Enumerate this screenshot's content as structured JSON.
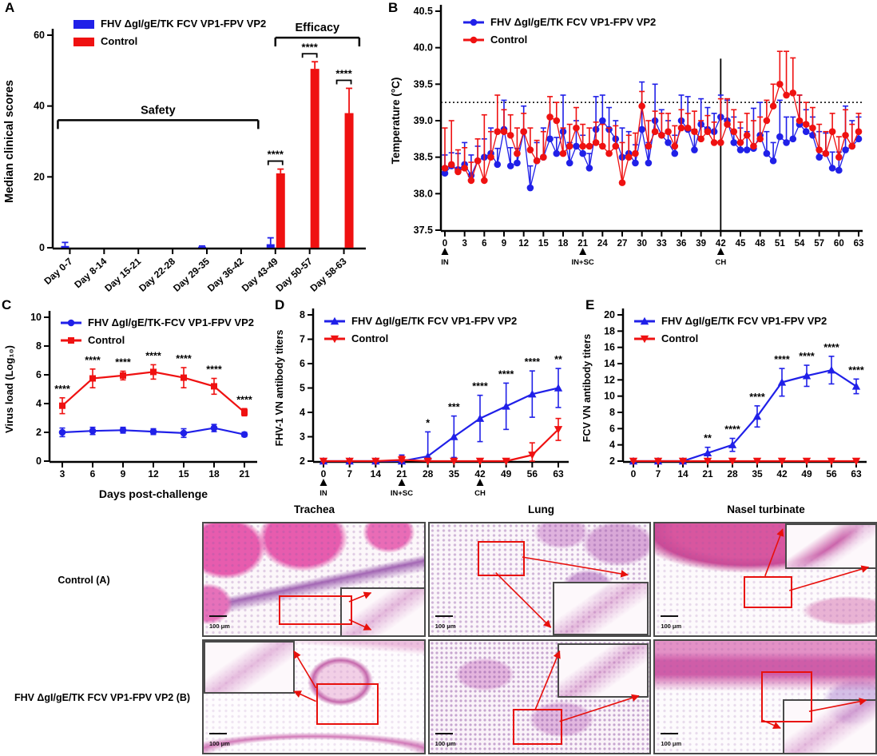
{
  "colors": {
    "vaccine": "#2020e8",
    "control": "#ef1111",
    "axis": "#000000",
    "roi": "#e8100c"
  },
  "histology": {
    "columns": [
      "Trachea",
      "Lung",
      "Nasel turbinate"
    ],
    "rows": [
      "Control (A)",
      "FHV ΔgI/gE/TK FCV VP1-FPV VP2 (B)"
    ],
    "scale_label": "100 μm"
  },
  "chart_data": [
    {
      "id": "A",
      "type": "bar",
      "ylabel": "Median clinical scores",
      "ylim": [
        0,
        60
      ],
      "yticks": [
        0,
        20,
        40,
        60
      ],
      "categories": [
        "Day 0-7",
        "Day 8-14",
        "Day 15-21",
        "Day 22-28",
        "Day 29-35",
        "Day 36-42",
        "Day 43-49",
        "Day 50-57",
        "Day 58-63"
      ],
      "series": [
        {
          "name": "FHV ΔgI/gE/TK FCV VP1-FPV VP2",
          "color": "#2020e8",
          "values": [
            0.5,
            0,
            0,
            0,
            0.3,
            0,
            1,
            0,
            0
          ],
          "errors": [
            1.0,
            0,
            0,
            0,
            0.2,
            0,
            1.8,
            0,
            0
          ]
        },
        {
          "name": "Control",
          "color": "#ef1111",
          "values": [
            0,
            0,
            0,
            0,
            0,
            0,
            21,
            50.5,
            38
          ],
          "errors": [
            0,
            0,
            0,
            0,
            0,
            0,
            1.2,
            2,
            7
          ]
        }
      ],
      "sig": [
        "",
        "",
        "",
        "",
        "",
        "",
        "****",
        "****",
        "****"
      ],
      "brackets": [
        {
          "label": "Safety",
          "from": -0.35,
          "to": 5.5,
          "y": 36
        },
        {
          "label": "Efficacy",
          "from": 6.0,
          "to": 8.45,
          "y": 59.3
        }
      ]
    },
    {
      "id": "B",
      "type": "scatter-line",
      "ylabel": "Temperature (°C)",
      "ylim": [
        37.5,
        40.5
      ],
      "yticks": [
        37.5,
        38.0,
        38.5,
        39.0,
        39.5,
        40.0,
        40.5
      ],
      "xticks": [
        0,
        3,
        6,
        9,
        12,
        15,
        18,
        21,
        24,
        27,
        30,
        33,
        36,
        39,
        42,
        45,
        48,
        51,
        54,
        57,
        60,
        63
      ],
      "threshold": 39.25,
      "challenge_line_x": 42,
      "arrows": [
        {
          "x": 0,
          "label": "IN"
        },
        {
          "x": 21,
          "label": "IN+SC"
        },
        {
          "x": 42,
          "label": "CH"
        }
      ],
      "x": [
        0,
        1,
        2,
        3,
        4,
        5,
        6,
        7,
        8,
        9,
        10,
        11,
        12,
        13,
        14,
        15,
        16,
        17,
        18,
        19,
        20,
        21,
        22,
        23,
        24,
        25,
        26,
        27,
        28,
        29,
        30,
        31,
        32,
        33,
        34,
        35,
        36,
        37,
        38,
        39,
        40,
        41,
        42,
        43,
        44,
        45,
        46,
        47,
        48,
        49,
        50,
        51,
        52,
        53,
        54,
        55,
        56,
        57,
        58,
        59,
        60,
        61,
        62,
        63
      ],
      "series": [
        {
          "name": "FHV ΔgI/gE/TK FCV VP1-FPV VP2",
          "color": "#2020e8",
          "marker": "circle",
          "values": [
            38.28,
            38.38,
            38.33,
            38.4,
            38.25,
            38.45,
            38.5,
            38.55,
            38.4,
            38.88,
            38.38,
            38.42,
            38.85,
            38.08,
            38.45,
            38.5,
            38.75,
            38.55,
            38.85,
            38.42,
            38.65,
            38.55,
            38.35,
            38.88,
            39.0,
            38.88,
            38.75,
            38.5,
            38.55,
            38.42,
            38.88,
            38.42,
            39.0,
            38.8,
            38.7,
            38.55,
            39.0,
            38.88,
            38.6,
            38.95,
            38.88,
            38.85,
            39.05,
            39.0,
            38.7,
            38.6,
            38.6,
            38.62,
            38.8,
            38.55,
            38.45,
            38.78,
            38.7,
            38.75,
            38.95,
            38.85,
            38.8,
            38.5,
            38.55,
            38.35,
            38.32,
            38.6,
            38.65,
            38.75
          ],
          "errors": [
            0.25,
            0.18,
            0.22,
            0.3,
            0.28,
            0.2,
            0.25,
            0.35,
            0.22,
            0.4,
            0.25,
            0.2,
            0.35,
            0.3,
            0.25,
            0.4,
            0.3,
            0.22,
            0.5,
            0.28,
            0.35,
            0.25,
            0.2,
            0.45,
            0.35,
            0.3,
            0.25,
            0.4,
            0.3,
            0.25,
            0.65,
            0.28,
            0.5,
            0.35,
            0.3,
            0.25,
            0.35,
            0.45,
            0.28,
            0.35,
            0.3,
            0.25,
            0.3,
            0.28,
            0.35,
            0.3,
            0.25,
            0.55,
            0.45,
            0.3,
            0.25,
            0.5,
            0.35,
            0.3,
            0.4,
            0.3,
            0.25,
            0.35,
            0.28,
            0.22,
            0.25,
            0.6,
            0.35,
            0.3
          ]
        },
        {
          "name": "Control",
          "color": "#ef1111",
          "marker": "circle",
          "values": [
            38.35,
            38.4,
            38.3,
            38.35,
            38.18,
            38.45,
            38.18,
            38.5,
            38.85,
            38.85,
            38.8,
            38.55,
            38.85,
            38.6,
            38.45,
            38.5,
            39.05,
            39.0,
            38.55,
            38.65,
            38.9,
            38.65,
            38.65,
            38.7,
            38.65,
            38.55,
            38.65,
            38.15,
            38.5,
            38.55,
            39.2,
            38.65,
            38.85,
            38.8,
            38.85,
            38.65,
            38.9,
            38.9,
            38.85,
            38.75,
            38.85,
            38.7,
            38.7,
            38.95,
            38.85,
            38.7,
            38.8,
            38.65,
            38.75,
            39.0,
            39.2,
            39.5,
            39.35,
            39.38,
            39.0,
            38.95,
            38.9,
            38.6,
            38.55,
            38.85,
            38.5,
            38.8,
            38.65,
            38.85
          ],
          "errors": [
            0.55,
            0.6,
            0.3,
            0.28,
            0.25,
            0.3,
            0.9,
            0.35,
            0.5,
            0.3,
            0.28,
            0.35,
            0.25,
            0.3,
            0.28,
            0.35,
            0.28,
            0.25,
            0.35,
            0.3,
            0.28,
            0.3,
            0.25,
            0.28,
            0.3,
            0.35,
            0.28,
            0.55,
            0.3,
            0.28,
            0.2,
            0.35,
            0.28,
            0.3,
            0.25,
            0.28,
            0.25,
            0.2,
            0.28,
            0.25,
            0.22,
            0.28,
            0.6,
            0.35,
            0.3,
            0.28,
            0.3,
            0.35,
            0.3,
            0.28,
            0.3,
            0.45,
            0.6,
            0.48,
            0.35,
            0.3,
            0.28,
            0.35,
            0.3,
            0.25,
            0.28,
            0.35,
            0.3,
            0.25
          ]
        }
      ]
    },
    {
      "id": "C",
      "type": "line",
      "ylabel": "Virus load (Log₁₀)",
      "xlabel": "Days post-challenge",
      "ylim": [
        0,
        10
      ],
      "yticks": [
        0,
        2,
        4,
        6,
        8,
        10
      ],
      "x": [
        3,
        6,
        9,
        12,
        15,
        18,
        21
      ],
      "xticks": [
        3,
        6,
        9,
        12,
        15,
        18,
        21
      ],
      "series": [
        {
          "name": "FHV ΔgI/gE/TK-FCV VP1-FPV VP2",
          "color": "#2020e8",
          "marker": "circle",
          "values": [
            2.0,
            2.1,
            2.15,
            2.05,
            1.95,
            2.3,
            1.85
          ],
          "errors": [
            0.3,
            0.25,
            0.2,
            0.2,
            0.3,
            0.25,
            0.15
          ]
        },
        {
          "name": "Control",
          "color": "#ef1111",
          "marker": "square",
          "values": [
            3.85,
            5.75,
            5.95,
            6.2,
            5.8,
            5.2,
            3.4
          ],
          "errors": [
            0.55,
            0.65,
            0.3,
            0.5,
            0.7,
            0.55,
            0.25
          ]
        }
      ],
      "sig": [
        "****",
        "****",
        "****",
        "****",
        "****",
        "****",
        "****"
      ]
    },
    {
      "id": "D",
      "type": "line",
      "ylabel": "FHV-1 VN antibody titers",
      "ylim": [
        2,
        8
      ],
      "yticks": [
        2,
        3,
        4,
        5,
        6,
        7,
        8
      ],
      "x": [
        0,
        7,
        14,
        21,
        28,
        35,
        42,
        49,
        56,
        63
      ],
      "xticks": [
        0,
        7,
        14,
        21,
        28,
        35,
        42,
        49,
        56,
        63
      ],
      "arrows": [
        {
          "x": 0,
          "label": "IN"
        },
        {
          "x": 21,
          "label": "IN+SC"
        },
        {
          "x": 42,
          "label": "CH"
        }
      ],
      "series": [
        {
          "name": "FHV ΔgI/gE/TK FCV VP1-FPV VP2",
          "color": "#2020e8",
          "marker": "triup",
          "values": [
            2,
            2,
            2,
            2,
            2.2,
            3.0,
            3.75,
            4.25,
            4.75,
            5.0
          ],
          "errors": [
            0,
            0,
            0,
            0.25,
            1.0,
            0.85,
            0.95,
            0.95,
            0.95,
            0.8
          ]
        },
        {
          "name": "Control",
          "color": "#ef1111",
          "marker": "tridown",
          "values": [
            2,
            2,
            2,
            2.05,
            2,
            2,
            2,
            2,
            2.25,
            3.3
          ],
          "errors": [
            0.1,
            0.05,
            0.05,
            0.15,
            0.05,
            0.05,
            0.05,
            0.05,
            0.5,
            0.45
          ]
        }
      ],
      "sig": [
        "",
        "",
        "",
        "",
        "*",
        "***",
        "****",
        "****",
        "****",
        "**"
      ]
    },
    {
      "id": "E",
      "type": "line",
      "ylabel": "FCV VN antibody titers",
      "ylim": [
        2,
        20
      ],
      "yticks": [
        2,
        4,
        6,
        8,
        10,
        12,
        14,
        16,
        18,
        20
      ],
      "x": [
        0,
        7,
        14,
        21,
        28,
        35,
        42,
        49,
        56,
        63
      ],
      "xticks": [
        0,
        7,
        14,
        21,
        28,
        35,
        42,
        49,
        56,
        63
      ],
      "series": [
        {
          "name": "FHV ΔgI/gE/TK FCV VP1-FPV VP2",
          "color": "#2020e8",
          "marker": "triup",
          "values": [
            2,
            2,
            2,
            3.0,
            4.0,
            7.5,
            11.7,
            12.5,
            13.2,
            11.2
          ],
          "errors": [
            0,
            0,
            0.1,
            0.7,
            0.8,
            1.3,
            1.7,
            1.3,
            1.7,
            0.9
          ]
        },
        {
          "name": "Control",
          "color": "#ef1111",
          "marker": "tridown",
          "values": [
            2,
            2,
            2,
            2,
            2,
            2,
            2,
            2,
            2,
            2
          ],
          "errors": [
            0.15,
            0.15,
            0.15,
            0.15,
            0.15,
            0.15,
            0.15,
            0.15,
            0.15,
            0.15
          ]
        }
      ],
      "sig": [
        "",
        "",
        "",
        "**",
        "****",
        "****",
        "****",
        "****",
        "****",
        "****"
      ]
    }
  ]
}
